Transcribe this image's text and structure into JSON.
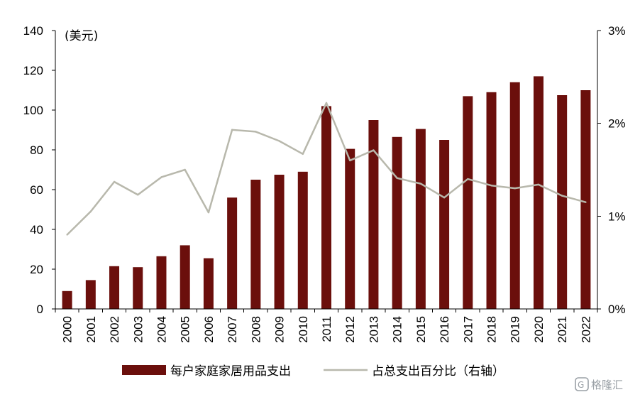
{
  "chart_data": {
    "type": "bar",
    "title": "",
    "unit_label": "(美元)",
    "categories": [
      "2000",
      "2001",
      "2002",
      "2003",
      "2004",
      "2005",
      "2006",
      "2007",
      "2008",
      "2009",
      "2010",
      "2011",
      "2012",
      "2013",
      "2014",
      "2015",
      "2016",
      "2017",
      "2018",
      "2019",
      "2020",
      "2021",
      "2022"
    ],
    "series": [
      {
        "name": "每户家庭家居用品支出",
        "type": "bar",
        "axis": "left",
        "color": "#6b0f0c",
        "values": [
          9,
          14.5,
          21.5,
          21,
          26.5,
          32,
          25.5,
          56,
          65,
          67.5,
          69,
          102,
          80.5,
          95,
          86.5,
          90.5,
          85,
          107,
          109,
          114,
          117,
          107.5,
          110
        ]
      },
      {
        "name": "占总支出百分比（右轴）",
        "type": "line",
        "axis": "right",
        "color": "#b8b8ac",
        "values": [
          0.8,
          1.05,
          1.37,
          1.23,
          1.42,
          1.5,
          1.04,
          1.93,
          1.91,
          1.81,
          1.67,
          2.22,
          1.6,
          1.71,
          1.41,
          1.35,
          1.2,
          1.4,
          1.33,
          1.3,
          1.34,
          1.22,
          1.15
        ]
      }
    ],
    "y_left": {
      "min": 0,
      "max": 140,
      "ticks": [
        "0",
        "20",
        "40",
        "60",
        "80",
        "100",
        "120",
        "140"
      ]
    },
    "y_right": {
      "min": 0,
      "max": 3,
      "ticks": [
        "0%",
        "1%",
        "2%",
        "3%"
      ]
    },
    "grid": false,
    "legend_position": "bottom",
    "watermark": "格隆汇"
  }
}
